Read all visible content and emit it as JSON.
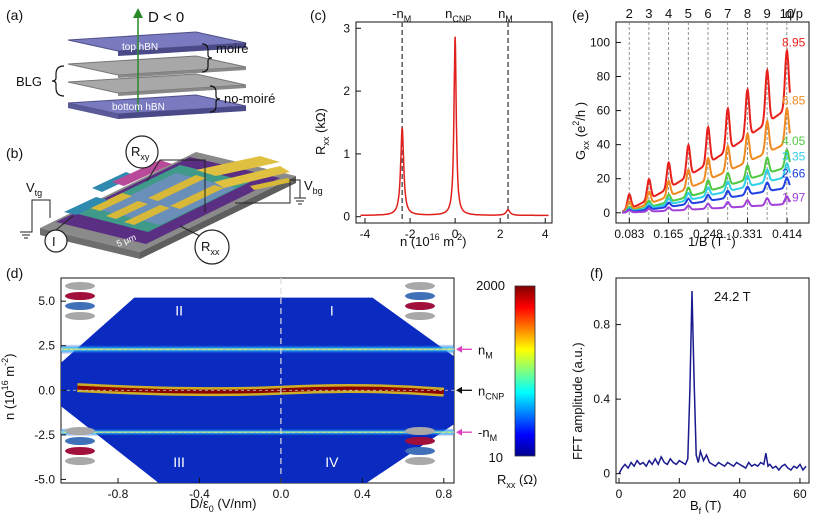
{
  "panel_labels": {
    "a": "(a)",
    "b": "(b)",
    "c": "(c)",
    "d": "(d)",
    "e": "(e)",
    "f": "(f)"
  },
  "panel_a": {
    "field_label": "D < 0",
    "top_layer": "top hBN",
    "bottom_layer": "bottom hBN",
    "moire": "moiré",
    "no_moire": "no-moiré",
    "blg": "BLG"
  },
  "panel_b": {
    "v_tg": "V",
    "v_tg_sub": "tg",
    "v_bg": "V",
    "v_bg_sub": "bg",
    "r_xy": "R",
    "r_xy_sub": "xy",
    "r_xx": "R",
    "r_xx_sub": "xx",
    "current": "I",
    "scale": "5 μm"
  },
  "colors": {
    "red": "#e0201c",
    "gray_dash": "#666666",
    "magenta": "#e040c0",
    "navy": "#1a1a8e",
    "layer_blue": "#6b6bb0"
  },
  "chart_data": [
    {
      "id": "c",
      "type": "line",
      "xlabel": "n (10",
      "xlabel_sup": "16",
      "xlabel_tail": " m",
      "xlabel_sup2": "-2",
      "xlabel_end": ")",
      "ylabel": "R",
      "ylabel_sub": "xx",
      "ylabel_tail": " (kΩ)",
      "xlim": [
        -4.4,
        4.3
      ],
      "ylim": [
        -0.1,
        3.1
      ],
      "xticks": [
        "-4",
        "-2",
        "0",
        "2",
        "4"
      ],
      "xtick_values": [
        -4,
        -2,
        0,
        2,
        4
      ],
      "yticks": [
        "0",
        "1",
        "2",
        "3"
      ],
      "ytick_values": [
        0,
        1,
        2,
        3
      ],
      "top_labels": [
        "-n",
        "n",
        "n"
      ],
      "top_label_subs": [
        "M",
        "CNP",
        "M"
      ],
      "top_label_positions": [
        -2.35,
        0.0,
        2.35
      ],
      "peaks": [
        {
          "x": -2.35,
          "y": 1.4,
          "w": 0.08
        },
        {
          "x": 0.0,
          "y": 2.85,
          "w": 0.06
        },
        {
          "x": 2.35,
          "y": 0.09,
          "w": 0.1
        }
      ],
      "baseline": 0.02
    },
    {
      "id": "d",
      "type": "heatmap",
      "xlabel": "D/ε",
      "xlabel_sub": "0",
      "xlabel_tail": " (V/nm)",
      "ylabel": "n (10",
      "ylabel_sup": "16",
      "ylabel_tail": " m",
      "ylabel_sup2": "-2",
      "ylabel_end": ")",
      "xlim": [
        -1.08,
        0.85
      ],
      "ylim": [
        -5.2,
        6.3
      ],
      "xticks": [
        "-0.8",
        "-0.4",
        "0.0",
        "0.4",
        "0.8"
      ],
      "xtick_values": [
        -0.8,
        -0.4,
        0.0,
        0.4,
        0.8
      ],
      "yticks": [
        "5.0",
        "2.5",
        "0.0",
        "-2.5",
        "-5.0"
      ],
      "ytick_values": [
        5.0,
        2.5,
        0.0,
        -2.5,
        -5.0
      ],
      "regions": [
        "II",
        "I",
        "III",
        "IV"
      ],
      "right_labels": [
        "n",
        "n",
        "-n"
      ],
      "right_label_subs": [
        "M",
        "CNP",
        "M"
      ],
      "right_label_values": [
        2.3,
        0.0,
        -2.35
      ],
      "colorbar_max": "2000",
      "colorbar_min": "10",
      "colorbar_label": "R",
      "colorbar_label_sub": "xx",
      "colorbar_label_tail": " (Ω)",
      "boundary": [
        [
          -1.08,
          1.55
        ],
        [
          -0.72,
          5.2
        ],
        [
          0.45,
          5.2
        ],
        [
          0.85,
          1.9
        ],
        [
          0.85,
          -1.9
        ],
        [
          0.42,
          -5.2
        ],
        [
          -0.6,
          -5.2
        ],
        [
          -1.08,
          -0.9
        ]
      ]
    },
    {
      "id": "e",
      "type": "line",
      "xlabel": "1/B (T",
      "xlabel_sup": "-1",
      "xlabel_end": ")",
      "ylabel": "G",
      "ylabel_sub": "xx",
      "ylabel_tail": " (e",
      "ylabel_sup": "2",
      "ylabel_end": "/h )",
      "xlim": [
        0.055,
        0.46
      ],
      "ylim": [
        -6,
        112
      ],
      "xticks": [
        "0.083",
        "0.165",
        "0.248",
        "0.331",
        "0.414"
      ],
      "xtick_values": [
        0.083,
        0.165,
        0.248,
        0.331,
        0.414
      ],
      "yticks": [
        "0",
        "20",
        "40",
        "60",
        "80",
        "100"
      ],
      "ytick_values": [
        0,
        20,
        40,
        60,
        80,
        100
      ],
      "top_label": "q/p",
      "top_ticks": [
        "2",
        "3",
        "4",
        "5",
        "6",
        "7",
        "8",
        "9",
        "10"
      ],
      "top_tick_values": [
        0.0827,
        0.124,
        0.1654,
        0.2067,
        0.248,
        0.2894,
        0.3308,
        0.3721,
        0.4135
      ],
      "series": [
        {
          "name": "8.95",
          "color": "#e8201c",
          "amp": 30,
          "end": 100
        },
        {
          "name": "6.85",
          "color": "#f08a20",
          "amp": 18,
          "end": 66
        },
        {
          "name": "4.05",
          "color": "#50c840",
          "amp": 9,
          "end": 42
        },
        {
          "name": "3.35",
          "color": "#30d0e8",
          "amp": 7,
          "end": 33
        },
        {
          "name": "2.66",
          "color": "#2040e0",
          "amp": 5,
          "end": 23
        },
        {
          "name": "1.97",
          "color": "#a040d8",
          "amp": 4,
          "end": 9
        }
      ]
    },
    {
      "id": "f",
      "type": "line",
      "xlabel": "B",
      "xlabel_sub": "f",
      "xlabel_tail": " (T)",
      "ylabel": "FFT amplitude (a.u.)",
      "xlim": [
        -1,
        63
      ],
      "ylim": [
        -0.05,
        1.05
      ],
      "xticks": [
        "0",
        "20",
        "40",
        "60"
      ],
      "xtick_values": [
        0,
        20,
        40,
        60
      ],
      "yticks": [
        "0",
        "0.4",
        "0.8"
      ],
      "ytick_values": [
        0,
        0.4,
        0.8
      ],
      "annotation": "24.2 T",
      "peak_x": 24.2,
      "peak_y": 0.98,
      "points": [
        [
          0,
          0.0
        ],
        [
          1,
          0.03
        ],
        [
          2,
          0.05
        ],
        [
          3,
          0.03
        ],
        [
          4,
          0.06
        ],
        [
          5,
          0.04
        ],
        [
          6,
          0.07
        ],
        [
          7,
          0.05
        ],
        [
          8,
          0.06
        ],
        [
          9,
          0.04
        ],
        [
          10,
          0.07
        ],
        [
          11,
          0.05
        ],
        [
          12,
          0.08
        ],
        [
          13,
          0.05
        ],
        [
          14,
          0.09
        ],
        [
          15,
          0.06
        ],
        [
          16,
          0.05
        ],
        [
          17,
          0.08
        ],
        [
          18,
          0.06
        ],
        [
          19,
          0.05
        ],
        [
          20,
          0.07
        ],
        [
          21,
          0.06
        ],
        [
          22,
          0.05
        ],
        [
          22.8,
          0.08
        ],
        [
          23.5,
          0.45
        ],
        [
          24.2,
          0.98
        ],
        [
          24.9,
          0.5
        ],
        [
          25.6,
          0.1
        ],
        [
          26.3,
          0.06
        ],
        [
          27,
          0.12
        ],
        [
          28,
          0.07
        ],
        [
          29,
          0.1
        ],
        [
          30,
          0.06
        ],
        [
          31,
          0.05
        ],
        [
          32,
          0.04
        ],
        [
          33,
          0.06
        ],
        [
          34,
          0.05
        ],
        [
          35,
          0.04
        ],
        [
          36,
          0.06
        ],
        [
          37,
          0.05
        ],
        [
          38,
          0.04
        ],
        [
          39,
          0.06
        ],
        [
          40,
          0.05
        ],
        [
          41,
          0.04
        ],
        [
          42,
          0.03
        ],
        [
          43,
          0.06
        ],
        [
          44,
          0.04
        ],
        [
          45,
          0.05
        ],
        [
          46,
          0.04
        ],
        [
          47,
          0.06
        ],
        [
          48,
          0.05
        ],
        [
          48.7,
          0.11
        ],
        [
          49.4,
          0.04
        ],
        [
          50,
          0.05
        ],
        [
          51,
          0.03
        ],
        [
          52,
          0.04
        ],
        [
          53,
          0.02
        ],
        [
          54,
          0.04
        ],
        [
          55,
          0.05
        ],
        [
          56,
          0.03
        ],
        [
          57,
          0.02
        ],
        [
          58,
          0.04
        ],
        [
          59,
          0.03
        ],
        [
          60,
          0.05
        ],
        [
          61,
          0.02
        ],
        [
          62,
          0.04
        ]
      ]
    }
  ]
}
